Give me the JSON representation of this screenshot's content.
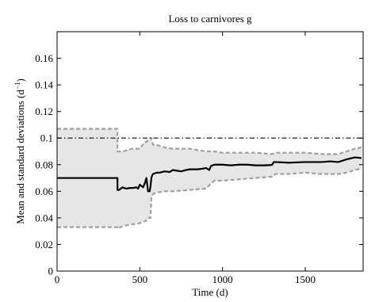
{
  "chart_data": {
    "type": "line",
    "title": "Loss to carnivores g",
    "xlabel": "Time (d)",
    "ylabel": "Mean and standard deviations (d",
    "ylabel_sup": "−1",
    "ylabel_close": ")",
    "xlim": [
      0,
      1850
    ],
    "ylim": [
      0,
      0.18
    ],
    "x_ticks": [
      0,
      500,
      1000,
      1500
    ],
    "y_ticks": [
      0,
      0.02,
      0.04,
      0.06,
      0.08,
      0.1,
      0.12,
      0.14,
      0.16
    ],
    "grid": false,
    "band_color": "#e6e6e6",
    "std_color": "#a0a0a0",
    "mean_color": "#000000",
    "reference_color": "#333333",
    "series": [
      {
        "role": "mean",
        "style": "solid",
        "x": [
          0,
          365,
          365,
          375,
          385,
          395,
          405,
          420,
          440,
          460,
          480,
          490,
          500,
          510,
          520,
          530,
          540,
          550,
          560,
          565,
          570,
          575,
          580,
          600,
          620,
          650,
          680,
          700,
          750,
          780,
          800,
          850,
          880,
          900,
          920,
          930,
          950,
          1000,
          1050,
          1100,
          1150,
          1200,
          1250,
          1290,
          1300,
          1310,
          1320,
          1400,
          1500,
          1550,
          1600,
          1650,
          1700,
          1750,
          1800,
          1840
        ],
        "y": [
          0.07,
          0.07,
          0.061,
          0.061,
          0.062,
          0.063,
          0.0625,
          0.062,
          0.0625,
          0.0625,
          0.063,
          0.062,
          0.065,
          0.064,
          0.063,
          0.066,
          0.07,
          0.06,
          0.06,
          0.064,
          0.07,
          0.072,
          0.073,
          0.074,
          0.074,
          0.075,
          0.0745,
          0.076,
          0.075,
          0.076,
          0.0765,
          0.0765,
          0.077,
          0.0775,
          0.076,
          0.079,
          0.08,
          0.08,
          0.0795,
          0.08,
          0.08,
          0.0795,
          0.0795,
          0.0797,
          0.08,
          0.082,
          0.082,
          0.0815,
          0.082,
          0.082,
          0.082,
          0.0825,
          0.082,
          0.084,
          0.0855,
          0.085
        ]
      },
      {
        "role": "upper",
        "style": "dashed",
        "x": [
          0,
          365,
          365,
          400,
          450,
          500,
          530,
          540,
          560,
          570,
          580,
          600,
          650,
          700,
          800,
          900,
          950,
          1000,
          1100,
          1200,
          1300,
          1320,
          1400,
          1500,
          1600,
          1700,
          1750,
          1800,
          1840
        ],
        "y": [
          0.107,
          0.107,
          0.09,
          0.09,
          0.092,
          0.092,
          0.097,
          0.097,
          0.1,
          0.1,
          0.095,
          0.095,
          0.093,
          0.092,
          0.092,
          0.09,
          0.09,
          0.089,
          0.089,
          0.089,
          0.088,
          0.089,
          0.089,
          0.089,
          0.088,
          0.088,
          0.09,
          0.092,
          0.093
        ]
      },
      {
        "role": "lower",
        "style": "dashed",
        "x": [
          0,
          365,
          365,
          400,
          450,
          500,
          520,
          540,
          550,
          565,
          570,
          580,
          600,
          650,
          700,
          800,
          900,
          950,
          1000,
          1100,
          1200,
          1300,
          1320,
          1400,
          1500,
          1600,
          1700,
          1750,
          1800,
          1840
        ],
        "y": [
          0.033,
          0.033,
          0.032,
          0.034,
          0.035,
          0.036,
          0.037,
          0.038,
          0.04,
          0.04,
          0.055,
          0.058,
          0.059,
          0.06,
          0.06,
          0.061,
          0.062,
          0.068,
          0.068,
          0.069,
          0.07,
          0.071,
          0.073,
          0.073,
          0.074,
          0.073,
          0.073,
          0.074,
          0.076,
          0.077
        ]
      },
      {
        "role": "reference",
        "style": "dash-dot",
        "x": [
          0,
          1850
        ],
        "y": [
          0.1,
          0.1
        ]
      }
    ]
  }
}
